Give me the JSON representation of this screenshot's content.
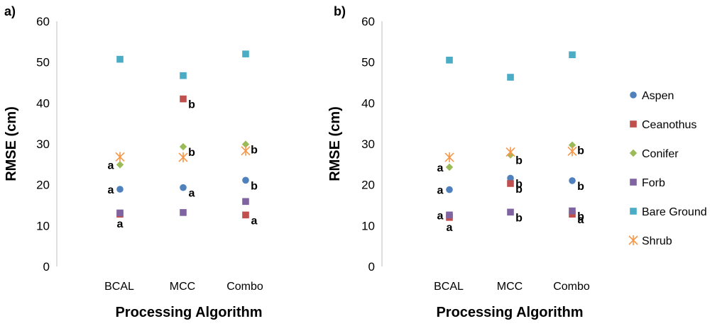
{
  "colors": {
    "Aspen": "#4f81bd",
    "Ceanothus": "#c0504d",
    "Conifer": "#9bbb59",
    "Forb": "#8064a2",
    "Bare Ground": "#4bacc6",
    "Shrub": "#f79646"
  },
  "legend": {
    "entries": [
      {
        "name": "Aspen",
        "marker": "circle"
      },
      {
        "name": "Ceanothus",
        "marker": "square"
      },
      {
        "name": "Conifer",
        "marker": "diamond"
      },
      {
        "name": "Forb",
        "marker": "square"
      },
      {
        "name": "Bare Ground",
        "marker": "square"
      },
      {
        "name": "Shrub",
        "marker": "asterisk"
      }
    ]
  },
  "chart_data": [
    {
      "type": "scatter",
      "panel_label": "a)",
      "xlabel": "Processing Algorithm",
      "ylabel": "RMSE (cm)",
      "ylim": [
        0,
        60
      ],
      "yticks": [
        0,
        10,
        20,
        30,
        40,
        50,
        60
      ],
      "categories": [
        "BCAL",
        "MCC",
        "Combo"
      ],
      "series": [
        {
          "name": "Aspen",
          "values": [
            18.9,
            19.3,
            21.1
          ],
          "letters": [
            "a",
            "a",
            "b"
          ]
        },
        {
          "name": "Ceanothus",
          "values": [
            12.8,
            41.0,
            12.6
          ],
          "letters": [
            "a",
            "b",
            "a"
          ]
        },
        {
          "name": "Conifer",
          "values": [
            24.9,
            29.3,
            29.9
          ],
          "letters": [
            "a",
            "b",
            "b"
          ]
        },
        {
          "name": "Forb",
          "values": [
            13.1,
            13.2,
            15.9
          ],
          "letters": [
            "",
            "",
            ""
          ]
        },
        {
          "name": "Bare Ground",
          "values": [
            50.7,
            46.7,
            52.0
          ],
          "letters": [
            "",
            "",
            ""
          ]
        },
        {
          "name": "Shrub",
          "values": [
            26.8,
            26.7,
            28.3
          ],
          "letters": [
            "",
            "",
            ""
          ]
        }
      ]
    },
    {
      "type": "scatter",
      "panel_label": "b)",
      "xlabel": "Processing Algorithm",
      "ylabel": "RMSE (cm)",
      "ylim": [
        0,
        60
      ],
      "yticks": [
        0,
        10,
        20,
        30,
        40,
        50,
        60
      ],
      "categories": [
        "BCAL",
        "MCC",
        "Combo"
      ],
      "series": [
        {
          "name": "Aspen",
          "values": [
            18.8,
            21.6,
            21.0
          ],
          "letters": [
            "a",
            "b",
            "b"
          ]
        },
        {
          "name": "Ceanothus",
          "values": [
            12.0,
            20.3,
            12.8
          ],
          "letters": [
            "a",
            "b",
            "a"
          ]
        },
        {
          "name": "Conifer",
          "values": [
            24.3,
            27.3,
            29.7
          ],
          "letters": [
            "a",
            "b",
            "b"
          ]
        },
        {
          "name": "Forb",
          "values": [
            12.6,
            13.3,
            13.6
          ],
          "letters": [
            "a",
            "b",
            "b"
          ]
        },
        {
          "name": "Bare Ground",
          "values": [
            50.5,
            46.3,
            51.8
          ],
          "letters": [
            "",
            "",
            ""
          ]
        },
        {
          "name": "Shrub",
          "values": [
            26.7,
            28.0,
            28.2
          ],
          "letters": [
            "",
            "",
            ""
          ]
        }
      ]
    }
  ]
}
